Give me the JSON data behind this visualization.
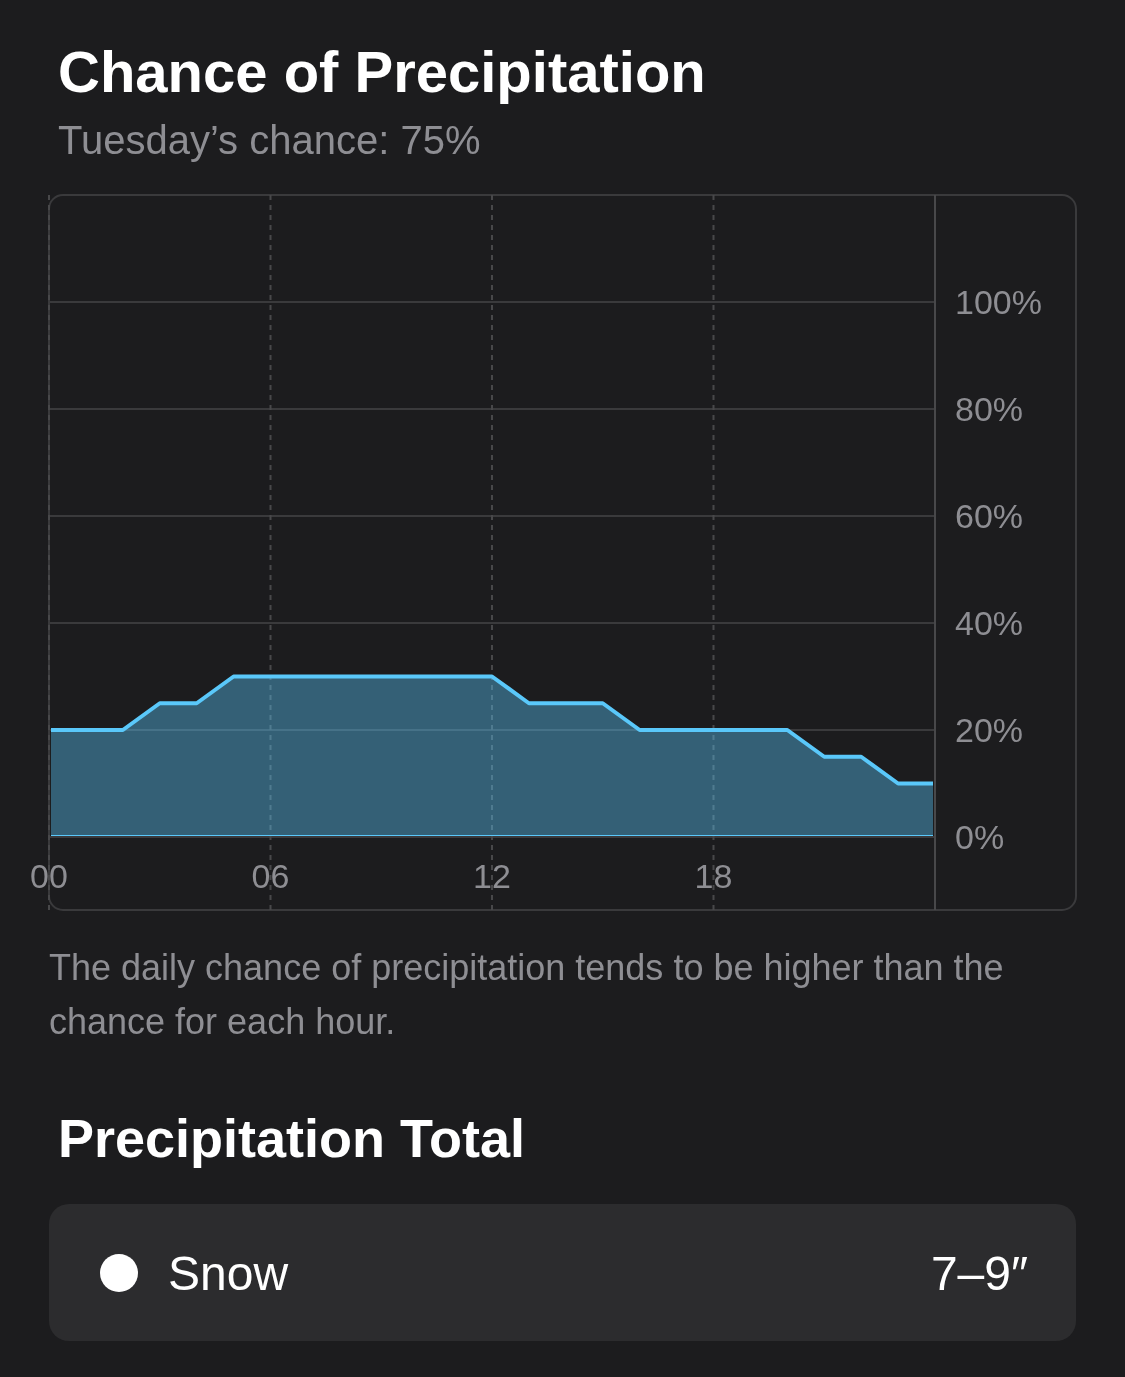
{
  "chart_data": [
    {
      "type": "area",
      "title": "Chance of Precipitation",
      "subtitle": "Tuesday’s chance: 75%",
      "annotations": [
        "The daily chance of precipitation tends to be higher than the chance for each hour."
      ],
      "x": [
        0,
        1,
        2,
        3,
        4,
        5,
        6,
        7,
        8,
        9,
        10,
        11,
        12,
        13,
        14,
        15,
        16,
        17,
        18,
        19,
        20,
        21,
        22,
        23,
        24
      ],
      "series": [
        {
          "color": "#5ac8fa",
          "values": [
            20,
            20,
            20,
            25,
            25,
            30,
            30,
            30,
            30,
            30,
            30,
            30,
            30,
            25,
            25,
            25,
            20,
            20,
            20,
            20,
            20,
            15,
            15,
            10,
            10
          ]
        }
      ],
      "xlim": [
        0,
        24
      ],
      "xticks": [
        {
          "value": 0,
          "label": "00"
        },
        {
          "value": 6,
          "label": "06"
        },
        {
          "value": 12,
          "label": "12"
        },
        {
          "value": 18,
          "label": "18"
        }
      ],
      "ylim": [
        0,
        120
      ],
      "yticks": [
        {
          "value": 0,
          "label": "0%"
        },
        {
          "value": 20,
          "label": "20%"
        },
        {
          "value": 40,
          "label": "40%"
        },
        {
          "value": 60,
          "label": "60%"
        },
        {
          "value": 80,
          "label": "80%"
        },
        {
          "value": 100,
          "label": "100%"
        }
      ],
      "grid": true
    },
    {
      "type": "other",
      "title": "Precipitation Total",
      "annotations": [
        "Snow",
        "7–9″"
      ]
    }
  ]
}
